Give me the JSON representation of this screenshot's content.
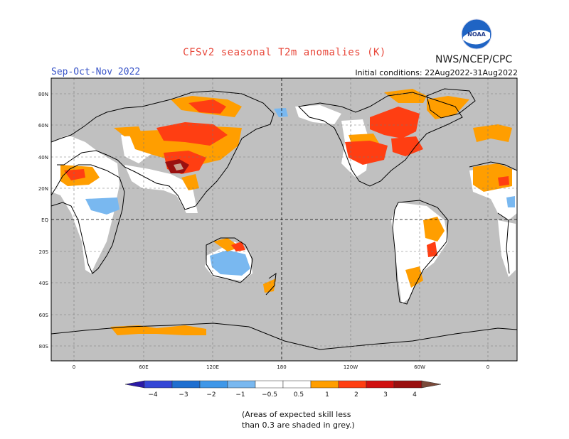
{
  "header": {
    "title": "CFSv2 seasonal T2m anomalies (K)",
    "agency": "NWS/NCEP/CPC",
    "season": "Sep-Oct-Nov 2022",
    "initial_conditions": "Initial conditions: 22Aug2022-31Aug2022",
    "logo_text": "NOAA"
  },
  "map": {
    "lat_labels": [
      "80N",
      "60N",
      "40N",
      "20N",
      "EQ",
      "20S",
      "40S",
      "60S",
      "80S"
    ],
    "lon_labels": [
      "0",
      "60E",
      "120E",
      "180",
      "120W",
      "60W",
      "0"
    ]
  },
  "colorbar": {
    "tick_labels": [
      "−4",
      "−3",
      "−2",
      "−1",
      "−0.5",
      "0.5",
      "1",
      "2",
      "3",
      "4"
    ],
    "colors": {
      "lt_-4": "#2b1aa6",
      "-4_-3": "#3447d6",
      "-3_-2": "#1f6fd0",
      "-2_-1": "#3f97e8",
      "-1_-0.5": "#79b8f0",
      "-0.5_0.5": "#ffffff",
      "0.5_1": "#ff9e00",
      "1_2": "#ff3e12",
      "2_3": "#d01010",
      "3_4": "#9a1010",
      "4_5": "#c8a090",
      "gt_5": "#7a4a3a"
    },
    "grey_shade": "#c0c0c0"
  },
  "note": {
    "line1": "(Areas of expected skill less",
    "line2": "than 0.3 are shaded in grey.)"
  }
}
